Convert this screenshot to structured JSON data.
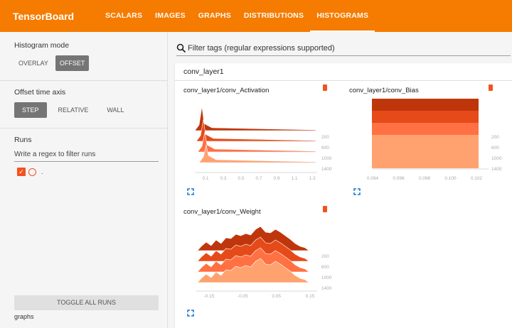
{
  "app": {
    "title": "TensorBoard"
  },
  "tabs": [
    {
      "label": "SCALARS"
    },
    {
      "label": "IMAGES"
    },
    {
      "label": "GRAPHS"
    },
    {
      "label": "DISTRIBUTIONS"
    },
    {
      "label": "HISTOGRAMS",
      "active": true
    }
  ],
  "sidebar": {
    "histogram_mode": {
      "label": "Histogram mode",
      "options": [
        "OVERLAY",
        "OFFSET"
      ],
      "selected": "OFFSET"
    },
    "offset_axis": {
      "label": "Offset time axis",
      "options": [
        "STEP",
        "RELATIVE",
        "WALL"
      ],
      "selected": "STEP"
    },
    "runs": {
      "label": "Runs",
      "regex_placeholder": "Write a regex to filter runs",
      "items": [
        {
          "name": "."
        }
      ]
    },
    "toggle_label": "TOGGLE ALL RUNS",
    "footer": "graphs"
  },
  "main": {
    "filter_placeholder": "Filter tags (regular expressions supported)",
    "group_title": "conv_layer1",
    "charts": [
      {
        "title": "conv_layer1/conv_Activation",
        "x_ticks": [
          "0.1",
          "0.3",
          "0.5",
          "0.7",
          "0.9",
          "1.1",
          "1.3"
        ],
        "step_labels": [
          "200",
          "600",
          "1000",
          "1400"
        ]
      },
      {
        "title": "conv_layer1/conv_Bias",
        "x_ticks": [
          "0.094",
          "0.096",
          "0.098",
          "0.100",
          "0.102"
        ],
        "step_labels": [
          "200",
          "600",
          "1000",
          "1400"
        ]
      },
      {
        "title": "conv_layer1/conv_Weight",
        "x_ticks": [
          "-0.15",
          "-0.05",
          "0.05",
          "0.15"
        ],
        "step_labels": [
          "200",
          "600",
          "1000",
          "1400"
        ]
      }
    ]
  },
  "colors": {
    "accent": "#f57c00",
    "run": "#f4511e",
    "slices": [
      "#bf360c",
      "#e64a19",
      "#ff7043",
      "#ffa270"
    ]
  }
}
